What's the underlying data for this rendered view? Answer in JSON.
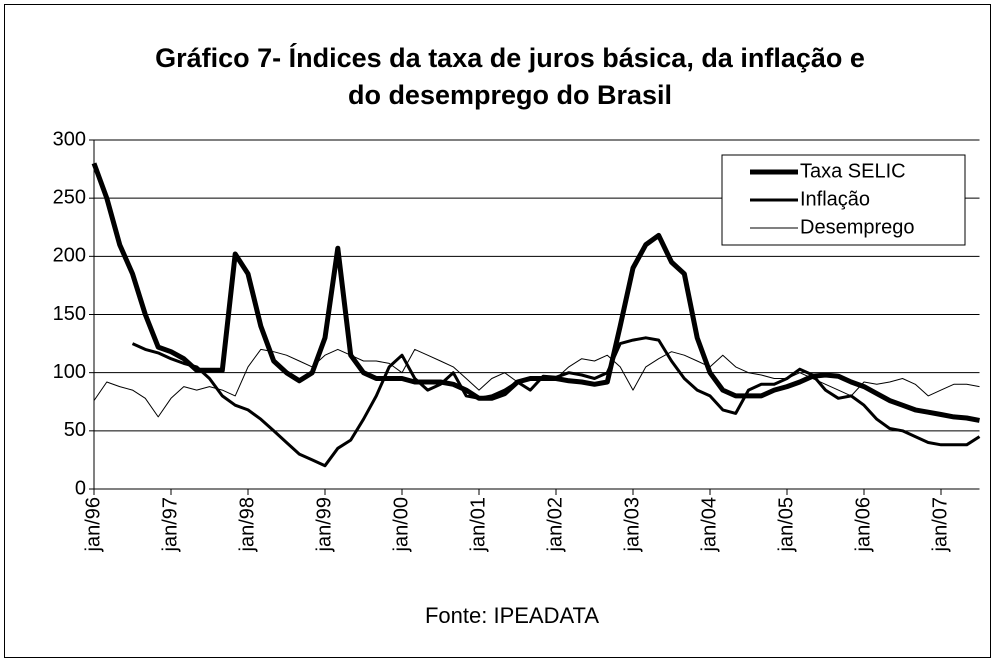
{
  "chart_data": {
    "type": "line",
    "title": "Gráfico 7- Índices da taxa de juros básica, da inflação e do desemprego do Brasil",
    "source": "Fonte: IPEADATA",
    "categories": [
      "jan/96",
      null,
      null,
      null,
      null,
      null,
      "jan/97",
      null,
      null,
      null,
      null,
      null,
      "jan/98",
      null,
      null,
      null,
      null,
      null,
      "jan/99",
      null,
      null,
      null,
      null,
      null,
      "jan/00",
      null,
      null,
      null,
      null,
      null,
      "jan/01",
      null,
      null,
      null,
      null,
      null,
      "jan/02",
      null,
      null,
      null,
      null,
      null,
      "jan/03",
      null,
      null,
      null,
      null,
      null,
      "jan/04",
      null,
      null,
      null,
      null,
      null,
      "jan/05",
      null,
      null,
      null,
      null,
      null,
      "jan/06",
      null,
      null,
      null,
      null,
      null,
      "jan/07",
      null,
      null,
      null
    ],
    "ylim": [
      0,
      300
    ],
    "yticks": [
      0,
      50,
      100,
      150,
      200,
      250,
      300
    ],
    "grid": true,
    "legend": "upper right",
    "series": [
      {
        "name": "Taxa SELIC",
        "color": "#000000",
        "width": 5,
        "values": [
          280,
          250,
          210,
          185,
          150,
          122,
          118,
          112,
          102,
          102,
          102,
          202,
          185,
          140,
          110,
          100,
          93,
          100,
          130,
          207,
          115,
          100,
          95,
          95,
          95,
          92,
          92,
          92,
          90,
          85,
          78,
          78,
          82,
          92,
          95,
          95,
          95,
          93,
          92,
          90,
          92,
          140,
          190,
          210,
          218,
          195,
          185,
          130,
          100,
          85,
          80,
          80,
          80,
          85,
          88,
          92,
          97,
          98,
          97,
          92,
          88,
          82,
          76,
          72,
          68,
          66,
          64,
          62,
          61,
          59
        ]
      },
      {
        "name": "Inflação",
        "color": "#000000",
        "width": 3,
        "values": [
          null,
          null,
          null,
          125,
          120,
          117,
          112,
          108,
          105,
          95,
          80,
          72,
          68,
          60,
          50,
          40,
          30,
          25,
          20,
          35,
          42,
          60,
          80,
          105,
          115,
          95,
          85,
          90,
          100,
          80,
          78,
          80,
          85,
          92,
          85,
          97,
          96,
          100,
          98,
          95,
          100,
          125,
          128,
          130,
          128,
          110,
          95,
          85,
          80,
          68,
          65,
          85,
          90,
          90,
          95,
          103,
          98,
          85,
          78,
          80,
          72,
          60,
          52,
          50,
          45,
          40,
          38,
          38,
          38,
          45
        ]
      },
      {
        "name": "Desemprego",
        "color": "#000000",
        "width": 1,
        "values": [
          76,
          92,
          88,
          85,
          78,
          62,
          78,
          88,
          85,
          88,
          85,
          80,
          105,
          120,
          118,
          115,
          110,
          105,
          115,
          120,
          115,
          110,
          110,
          108,
          100,
          120,
          115,
          110,
          105,
          95,
          85,
          95,
          100,
          92,
          95,
          95,
          95,
          105,
          112,
          110,
          115,
          105,
          85,
          105,
          112,
          118,
          115,
          110,
          105,
          115,
          105,
          100,
          98,
          95,
          95,
          100,
          95,
          90,
          85,
          80,
          92,
          90,
          92,
          95,
          90,
          80,
          85,
          90,
          90,
          88
        ]
      }
    ]
  }
}
